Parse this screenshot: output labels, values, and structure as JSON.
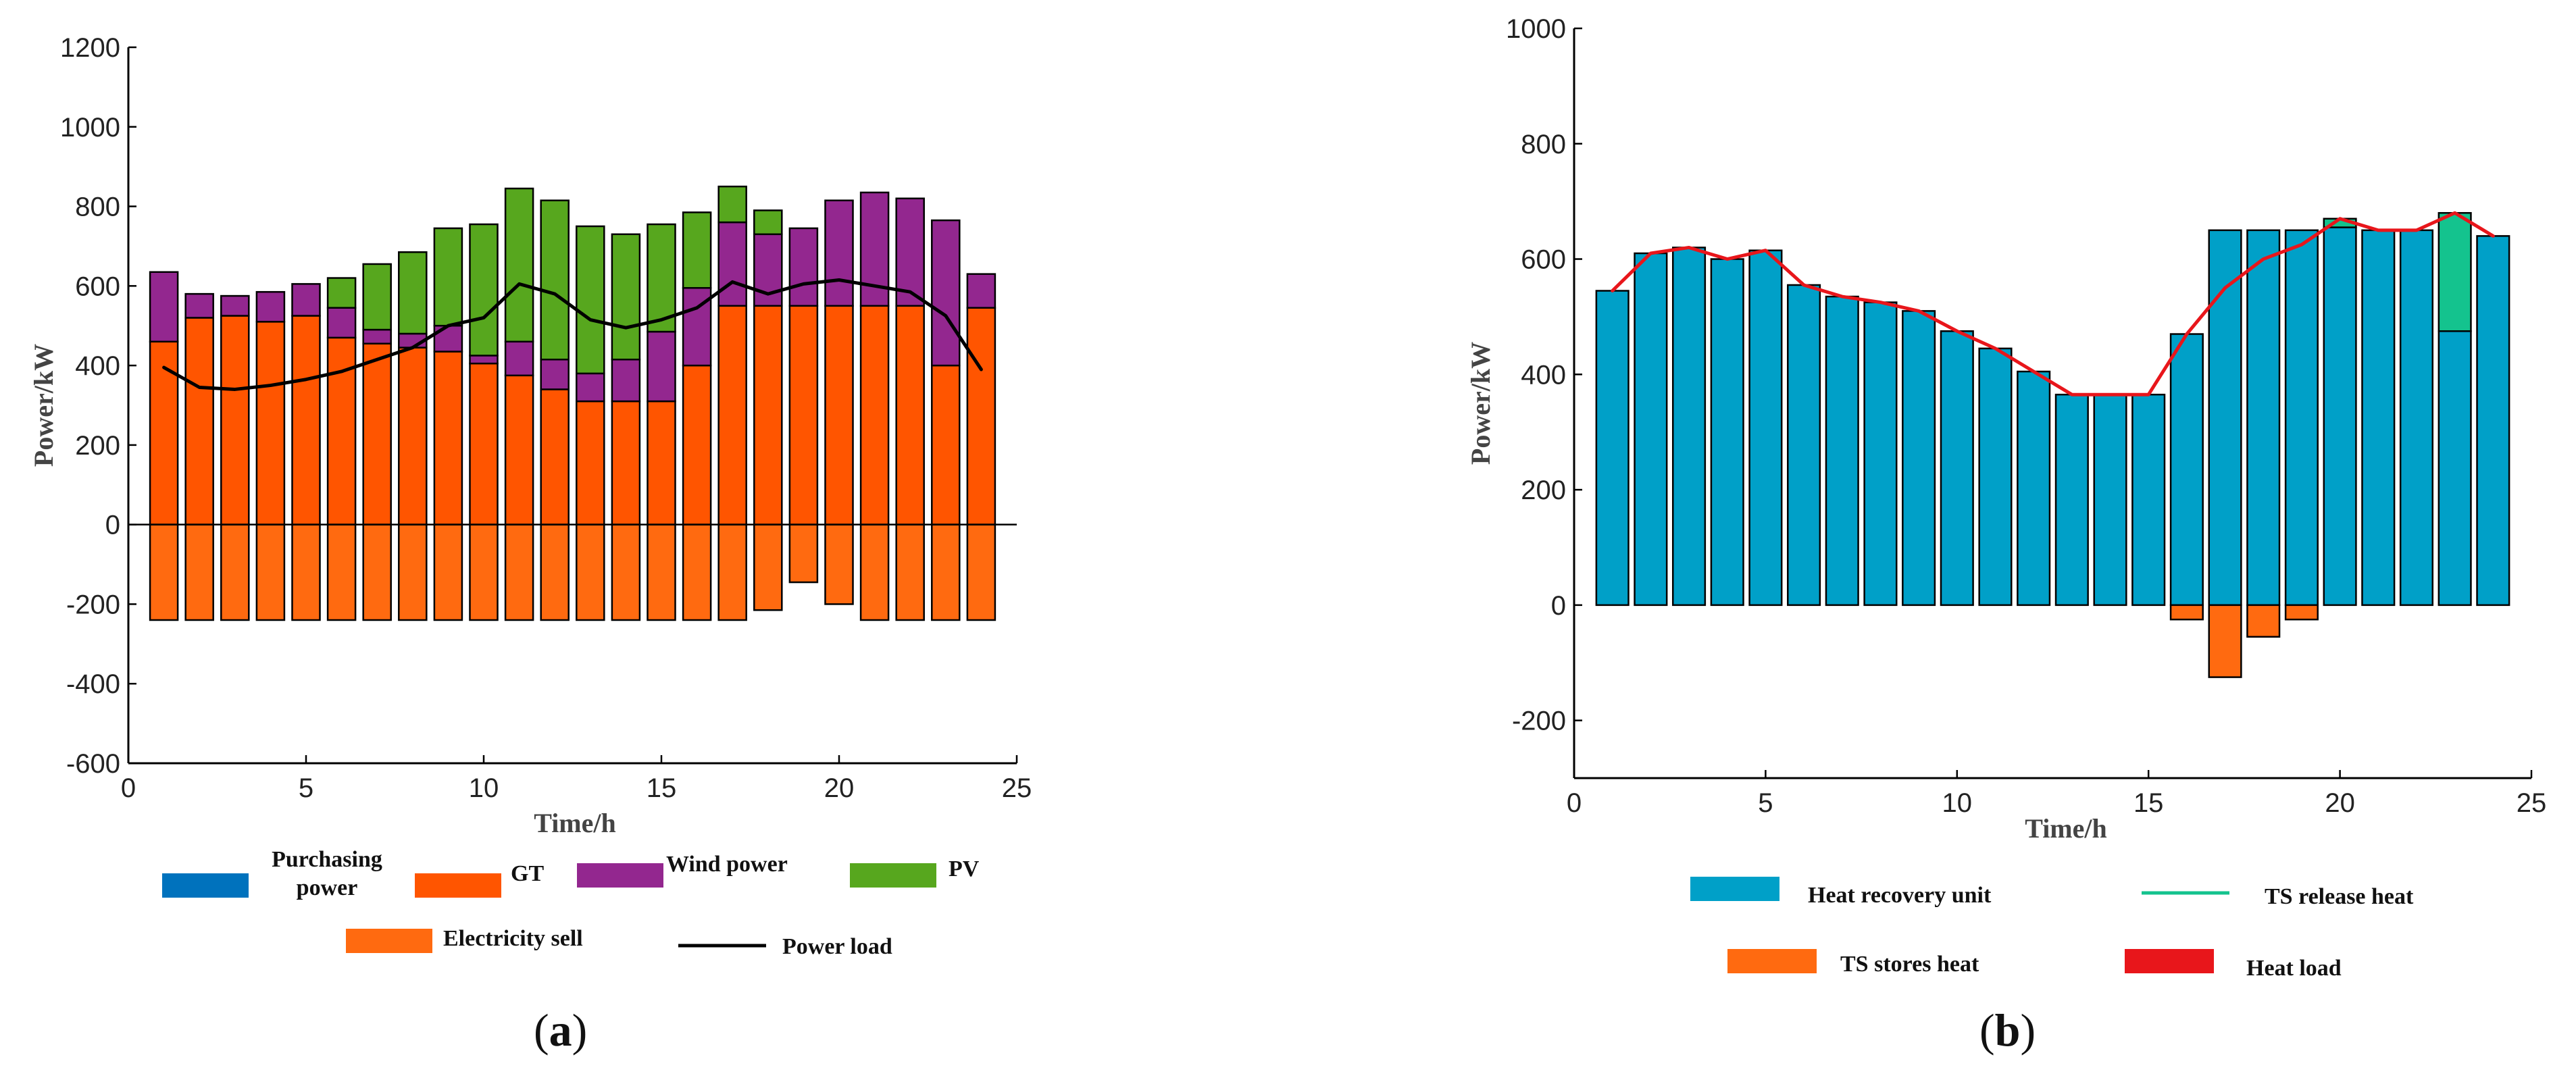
{
  "chart_data": [
    {
      "type": "bar",
      "stacked": true,
      "caption_letter": "a",
      "x": [
        1,
        2,
        3,
        4,
        5,
        6,
        7,
        8,
        9,
        10,
        11,
        12,
        13,
        14,
        15,
        16,
        17,
        18,
        19,
        20,
        21,
        22,
        23,
        24
      ],
      "xlabel": "Time/h",
      "ylabel": "Power/kW",
      "xlim": [
        0,
        25
      ],
      "ylim": [
        -600,
        1200
      ],
      "xticks": [
        "0",
        "5",
        "10",
        "15",
        "20",
        "25"
      ],
      "yticks": [
        "-600",
        "-400",
        "-200",
        "0",
        "200",
        "400",
        "600",
        "800",
        "1000",
        "1200"
      ],
      "series": [
        {
          "name": "Purchasing power",
          "legend_lines": [
            "Purchasing",
            "power"
          ],
          "color": "#0072BD",
          "values": [
            0,
            0,
            0,
            0,
            0,
            0,
            0,
            0,
            0,
            0,
            0,
            0,
            0,
            0,
            0,
            0,
            0,
            0,
            0,
            0,
            0,
            0,
            0,
            0
          ]
        },
        {
          "name": "GT",
          "legend_lines": [
            "GT"
          ],
          "color": "#FF5500",
          "values": [
            460,
            520,
            525,
            510,
            525,
            470,
            455,
            445,
            435,
            405,
            375,
            340,
            310,
            310,
            310,
            400,
            550,
            550,
            550,
            550,
            550,
            550,
            400,
            545
          ]
        },
        {
          "name": "Wind power",
          "legend_lines": [
            "Wind power"
          ],
          "color": "#93278F",
          "values": [
            175,
            60,
            50,
            75,
            80,
            75,
            35,
            35,
            65,
            20,
            85,
            75,
            70,
            105,
            175,
            195,
            210,
            180,
            195,
            265,
            285,
            270,
            365,
            85
          ]
        },
        {
          "name": "PV",
          "legend_lines": [
            "PV"
          ],
          "color": "#57A71E",
          "values": [
            0,
            0,
            0,
            0,
            0,
            75,
            165,
            205,
            245,
            330,
            385,
            400,
            370,
            315,
            270,
            190,
            90,
            60,
            0,
            0,
            0,
            0,
            0,
            0
          ]
        },
        {
          "name": "Electricity sell",
          "legend_lines": [
            "Electricity sell"
          ],
          "color": "#FF6A10",
          "values": [
            -240,
            -240,
            -240,
            -240,
            -240,
            -240,
            -240,
            -240,
            -240,
            -240,
            -240,
            -240,
            -240,
            -240,
            -240,
            -240,
            -240,
            -215,
            -145,
            -200,
            -240,
            -240,
            -240,
            -240
          ]
        }
      ],
      "line_series": [
        {
          "name": "Power load",
          "color": "#000000",
          "values": [
            395,
            345,
            340,
            350,
            365,
            385,
            415,
            445,
            500,
            520,
            605,
            580,
            515,
            495,
            515,
            545,
            610,
            580,
            605,
            615,
            600,
            585,
            525,
            390
          ]
        }
      ]
    },
    {
      "type": "bar",
      "stacked": true,
      "caption_letter": "b",
      "x": [
        1,
        2,
        3,
        4,
        5,
        6,
        7,
        8,
        9,
        10,
        11,
        12,
        13,
        14,
        15,
        16,
        17,
        18,
        19,
        20,
        21,
        22,
        23,
        24
      ],
      "xlabel": "Time/h",
      "ylabel": "Power/kW",
      "xlim": [
        0,
        25
      ],
      "ylim": [
        -300,
        1000
      ],
      "xticks": [
        "0",
        "5",
        "10",
        "15",
        "20",
        "25"
      ],
      "yticks": [
        "-200",
        "0",
        "200",
        "400",
        "600",
        "800",
        "1000"
      ],
      "series": [
        {
          "name": "Heat recovery unit",
          "legend_lines": [
            "Heat recovery unit"
          ],
          "color": "#00A0C8",
          "values": [
            545,
            610,
            620,
            600,
            615,
            555,
            535,
            525,
            510,
            475,
            445,
            405,
            365,
            365,
            365,
            470,
            650,
            650,
            650,
            655,
            650,
            650,
            475,
            640
          ]
        },
        {
          "name": "TS release heat",
          "legend_lines": [
            "TS release heat"
          ],
          "color": "#14C38E",
          "values": [
            0,
            0,
            0,
            0,
            0,
            0,
            0,
            0,
            0,
            0,
            0,
            0,
            0,
            0,
            0,
            0,
            0,
            0,
            0,
            15,
            0,
            0,
            205,
            0
          ]
        },
        {
          "name": "TS stores heat",
          "legend_lines": [
            "TS stores heat"
          ],
          "color": "#FF6A10",
          "values": [
            0,
            0,
            0,
            0,
            0,
            0,
            0,
            0,
            0,
            0,
            0,
            0,
            0,
            0,
            0,
            -25,
            -125,
            -55,
            -25,
            0,
            0,
            0,
            0,
            0
          ]
        }
      ],
      "line_series": [
        {
          "name": "Heat load",
          "color": "#E8161B",
          "values": [
            545,
            610,
            620,
            600,
            615,
            555,
            535,
            525,
            510,
            475,
            445,
            405,
            365,
            365,
            365,
            470,
            550,
            600,
            625,
            670,
            650,
            650,
            680,
            640
          ]
        }
      ]
    }
  ]
}
